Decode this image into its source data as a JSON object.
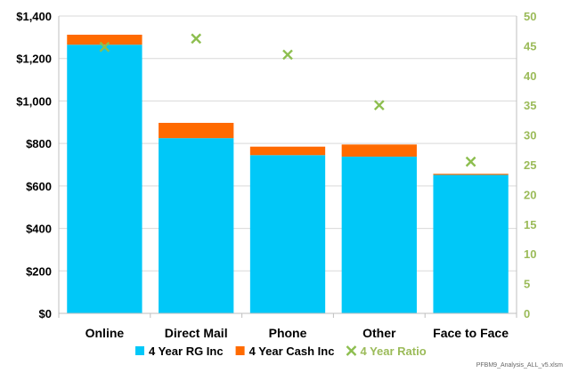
{
  "chart_data": {
    "type": "bar",
    "stacked": true,
    "categories": [
      "Online",
      "Direct Mail",
      "Phone",
      "Other",
      "Face to Face"
    ],
    "series": [
      {
        "name": "4 Year RG Inc",
        "type": "bar",
        "axis": "left",
        "color": "#00C8F8",
        "values": [
          1265,
          825,
          745,
          738,
          652
        ]
      },
      {
        "name": "4 Year Cash Inc",
        "type": "bar",
        "axis": "left",
        "color": "#FF6A00",
        "values": [
          47,
          72,
          40,
          57,
          5
        ]
      },
      {
        "name": "4 Year Ratio",
        "type": "scatter",
        "marker": "x",
        "axis": "right",
        "color": "#8DBE4F",
        "values": [
          44.8,
          46.2,
          43.5,
          35.0,
          25.5
        ]
      }
    ],
    "y_left": {
      "range": [
        0,
        1400
      ],
      "ticks": [
        "$0",
        "$200",
        "$400",
        "$600",
        "$800",
        "$1,000",
        "$1,200",
        "$1,400"
      ]
    },
    "y_right": {
      "range": [
        0,
        50
      ],
      "ticks": [
        "0",
        "5",
        "10",
        "15",
        "20",
        "25",
        "30",
        "35",
        "40",
        "45",
        "50"
      ]
    },
    "grid": true,
    "legend_position": "bottom"
  },
  "footer": "PFBM9_Analysis_ALL_v5.xlsm",
  "colors": {
    "grid": "#d9d9d9",
    "axis": "#bfbfbf",
    "right_axis_text": "#9BBB59"
  }
}
